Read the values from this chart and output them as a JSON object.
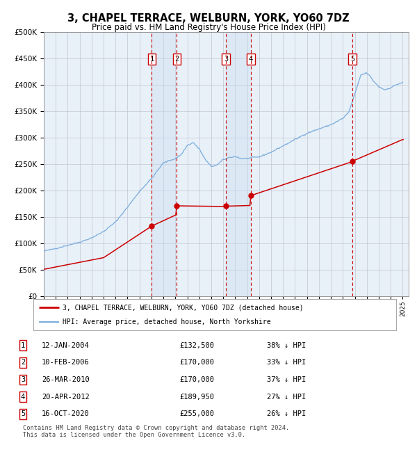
{
  "title": "3, CHAPEL TERRACE, WELBURN, YORK, YO60 7DZ",
  "subtitle": "Price paid vs. HM Land Registry's House Price Index (HPI)",
  "hpi_label": "HPI: Average price, detached house, North Yorkshire",
  "property_label": "3, CHAPEL TERRACE, WELBURN, YORK, YO60 7DZ (detached house)",
  "footnote": "Contains HM Land Registry data © Crown copyright and database right 2024.\nThis data is licensed under the Open Government Licence v3.0.",
  "sales": [
    {
      "num": 1,
      "date": "2004-01-12",
      "price": 132500
    },
    {
      "num": 2,
      "date": "2006-02-10",
      "price": 170000
    },
    {
      "num": 3,
      "date": "2010-03-26",
      "price": 170000
    },
    {
      "num": 4,
      "date": "2012-04-20",
      "price": 189950
    },
    {
      "num": 5,
      "date": "2020-10-16",
      "price": 255000
    }
  ],
  "table_rows": [
    [
      "1",
      "12-JAN-2004",
      "£132,500",
      "38% ↓ HPI"
    ],
    [
      "2",
      "10-FEB-2006",
      "£170,000",
      "33% ↓ HPI"
    ],
    [
      "3",
      "26-MAR-2010",
      "£170,000",
      "37% ↓ HPI"
    ],
    [
      "4",
      "20-APR-2012",
      "£189,950",
      "27% ↓ HPI"
    ],
    [
      "5",
      "16-OCT-2020",
      "£255,000",
      "26% ↓ HPI"
    ]
  ],
  "hpi_color": "#7aacdc",
  "property_color": "#cc0000",
  "shade_color": "#ddeeff",
  "vline_color": "#cc0000",
  "marker_color": "#cc0000",
  "background_color": "#ffffff",
  "grid_color": "#cccccc",
  "chart_bg": "#e8f0f8",
  "ylim": [
    0,
    500000
  ],
  "xlim_start": 1995.0,
  "xlim_end": 2025.5,
  "hpi_anchors": [
    [
      1995.0,
      85000
    ],
    [
      1996.0,
      90000
    ],
    [
      1997.0,
      96000
    ],
    [
      1998.0,
      102000
    ],
    [
      1999.0,
      110000
    ],
    [
      2000.0,
      122000
    ],
    [
      2001.0,
      140000
    ],
    [
      2002.0,
      168000
    ],
    [
      2003.0,
      198000
    ],
    [
      2004.0,
      222000
    ],
    [
      2005.0,
      252000
    ],
    [
      2006.0,
      260000
    ],
    [
      2006.5,
      268000
    ],
    [
      2007.0,
      285000
    ],
    [
      2007.5,
      290000
    ],
    [
      2008.0,
      278000
    ],
    [
      2008.5,
      258000
    ],
    [
      2009.0,
      245000
    ],
    [
      2009.5,
      248000
    ],
    [
      2010.0,
      258000
    ],
    [
      2010.5,
      262000
    ],
    [
      2011.0,
      264000
    ],
    [
      2011.5,
      260000
    ],
    [
      2012.0,
      260000
    ],
    [
      2012.5,
      262000
    ],
    [
      2013.0,
      263000
    ],
    [
      2014.0,
      272000
    ],
    [
      2015.0,
      284000
    ],
    [
      2016.0,
      296000
    ],
    [
      2017.0,
      308000
    ],
    [
      2018.0,
      316000
    ],
    [
      2019.0,
      324000
    ],
    [
      2020.0,
      336000
    ],
    [
      2020.5,
      348000
    ],
    [
      2021.0,
      382000
    ],
    [
      2021.5,
      418000
    ],
    [
      2022.0,
      422000
    ],
    [
      2022.3,
      415000
    ],
    [
      2022.5,
      408000
    ],
    [
      2023.0,
      396000
    ],
    [
      2023.5,
      390000
    ],
    [
      2024.0,
      394000
    ],
    [
      2024.5,
      400000
    ],
    [
      2025.0,
      404000
    ]
  ],
  "prop_anchors_hpi": [
    [
      1995.0,
      85000
    ],
    [
      2000.0,
      122000
    ],
    [
      2004.0,
      222000
    ],
    [
      2006.17,
      260000
    ],
    [
      2010.24,
      258000
    ],
    [
      2012.3,
      260000
    ],
    [
      2020.79,
      348000
    ],
    [
      2025.0,
      404000
    ]
  ],
  "sale_dates_frac": [
    2004.033,
    2006.115,
    2010.233,
    2012.302,
    2020.793
  ],
  "sale_prices": [
    132500,
    170000,
    170000,
    189950,
    255000
  ]
}
